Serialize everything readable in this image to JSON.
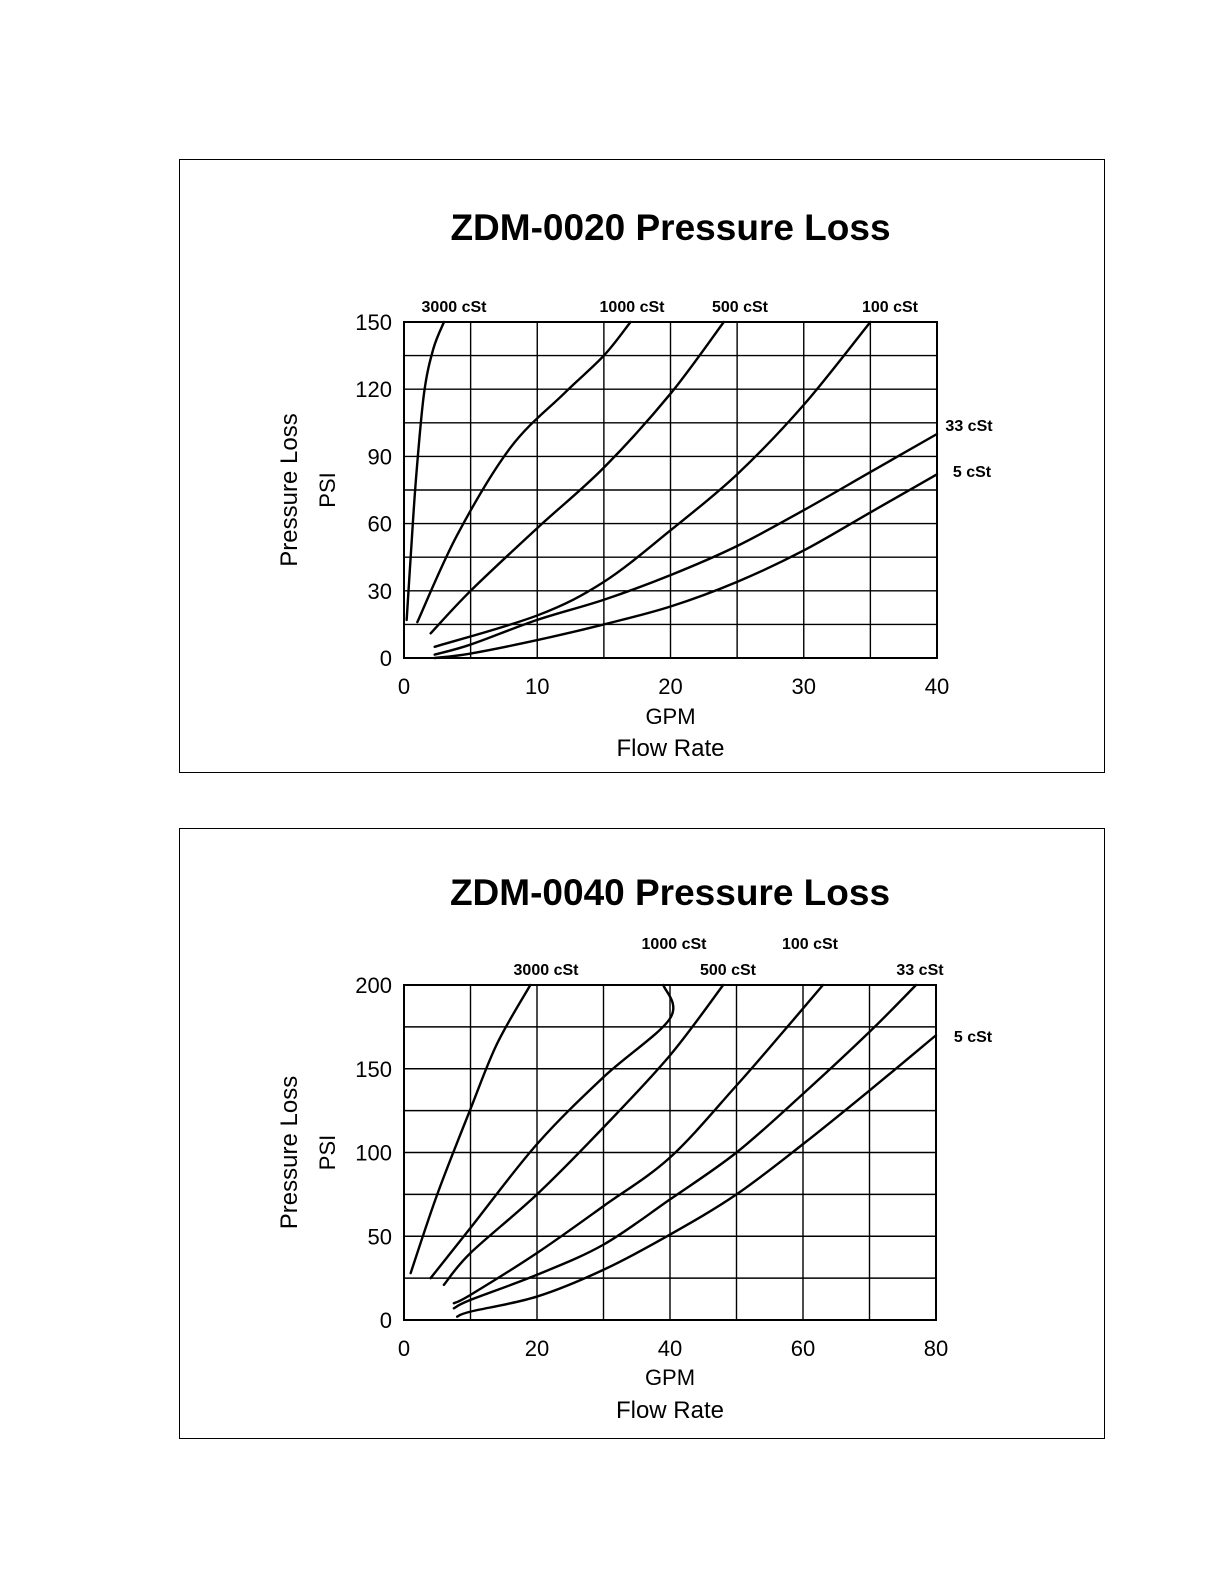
{
  "chart_data": [
    {
      "type": "line",
      "title": "ZDM-0020 Pressure Loss",
      "xlabel": "GPM",
      "xtitle": "Flow Rate",
      "ylabel": "PSI",
      "ytitle": "Pressure Loss",
      "xlim": [
        0,
        40
      ],
      "ylim": [
        0,
        150
      ],
      "xticks": [
        "0",
        "10",
        "20",
        "30",
        "40"
      ],
      "yticks": [
        "0",
        "30",
        "60",
        "90",
        "120",
        "150"
      ],
      "x_gridlines": [
        0,
        5,
        10,
        15,
        20,
        25,
        30,
        35,
        40
      ],
      "y_gridlines": [
        0,
        15,
        30,
        45,
        60,
        75,
        90,
        105,
        120,
        135,
        150
      ],
      "grid": true,
      "series": [
        {
          "name": "3000 cSt",
          "points": [
            [
              0.2,
              17
            ],
            [
              0.5,
              45
            ],
            [
              0.9,
              80
            ],
            [
              1.5,
              118
            ],
            [
              2.2,
              138
            ],
            [
              3.0,
              150
            ]
          ]
        },
        {
          "name": "1000 cSt",
          "points": [
            [
              1.0,
              16
            ],
            [
              4,
              55
            ],
            [
              8,
              94
            ],
            [
              12,
              118
            ],
            [
              15,
              135
            ],
            [
              17,
              150
            ]
          ]
        },
        {
          "name": "500 cSt",
          "points": [
            [
              2.0,
              11
            ],
            [
              5,
              30
            ],
            [
              10,
              58
            ],
            [
              15,
              85
            ],
            [
              20,
              118
            ],
            [
              24,
              150
            ]
          ]
        },
        {
          "name": "100 cSt",
          "points": [
            [
              2.3,
              5
            ],
            [
              10,
              19
            ],
            [
              15,
              34
            ],
            [
              20,
              57
            ],
            [
              25,
              82
            ],
            [
              30,
              113
            ],
            [
              35,
              150
            ]
          ]
        },
        {
          "name": "33 cSt",
          "points": [
            [
              2.3,
              1.5
            ],
            [
              5,
              6
            ],
            [
              10,
              17
            ],
            [
              15,
              26
            ],
            [
              20,
              37
            ],
            [
              25,
              50
            ],
            [
              30,
              66
            ],
            [
              35,
              83
            ],
            [
              40,
              100
            ]
          ]
        },
        {
          "name": "5 cSt",
          "points": [
            [
              2.3,
              0
            ],
            [
              5,
              2
            ],
            [
              10,
              8
            ],
            [
              15,
              15
            ],
            [
              20,
              23
            ],
            [
              25,
              34
            ],
            [
              30,
              48
            ],
            [
              35,
              65
            ],
            [
              40,
              82
            ]
          ]
        }
      ]
    },
    {
      "type": "line",
      "title": "ZDM-0040 Pressure Loss",
      "xlabel": "GPM",
      "xtitle": "Flow Rate",
      "ylabel": "PSI",
      "ytitle": "Pressure Loss",
      "xlim": [
        0,
        80
      ],
      "ylim": [
        0,
        200
      ],
      "xticks": [
        "0",
        "20",
        "40",
        "60",
        "80"
      ],
      "yticks": [
        "0",
        "50",
        "100",
        "150",
        "200"
      ],
      "x_gridlines": [
        0,
        10,
        20,
        30,
        40,
        50,
        60,
        70,
        80
      ],
      "y_gridlines": [
        0,
        25,
        50,
        75,
        100,
        125,
        150,
        175,
        200
      ],
      "grid": true,
      "series": [
        {
          "name": "3000 cSt",
          "points": [
            [
              1,
              28
            ],
            [
              5,
              75
            ],
            [
              10,
              126
            ],
            [
              14,
              165
            ],
            [
              19,
              200
            ]
          ]
        },
        {
          "name": "1000 cSt",
          "points": [
            [
              4,
              25
            ],
            [
              10,
              55
            ],
            [
              20,
              105
            ],
            [
              30,
              145
            ],
            [
              40,
              180
            ],
            [
              39,
              200
            ]
          ]
        },
        {
          "name": "500 cSt",
          "points": [
            [
              6,
              21
            ],
            [
              10,
              40
            ],
            [
              20,
              75
            ],
            [
              30,
              115
            ],
            [
              40,
              158
            ],
            [
              48,
              200
            ]
          ]
        },
        {
          "name": "100 cSt",
          "points": [
            [
              7.5,
              10
            ],
            [
              10,
              15
            ],
            [
              20,
              40
            ],
            [
              30,
              68
            ],
            [
              40,
              97
            ],
            [
              50,
              140
            ],
            [
              57,
              172
            ],
            [
              63,
              200
            ]
          ]
        },
        {
          "name": "33 cSt",
          "points": [
            [
              7.5,
              7
            ],
            [
              10,
              12
            ],
            [
              20,
              27
            ],
            [
              30,
              45
            ],
            [
              40,
              72
            ],
            [
              50,
              100
            ],
            [
              60,
              135
            ],
            [
              70,
              172
            ],
            [
              77,
              200
            ]
          ]
        },
        {
          "name": "5 cSt",
          "points": [
            [
              8,
              2
            ],
            [
              10,
              5
            ],
            [
              20,
              14
            ],
            [
              30,
              30
            ],
            [
              40,
              51
            ],
            [
              50,
              75
            ],
            [
              60,
              105
            ],
            [
              70,
              137
            ],
            [
              80,
              170
            ]
          ]
        }
      ]
    }
  ]
}
